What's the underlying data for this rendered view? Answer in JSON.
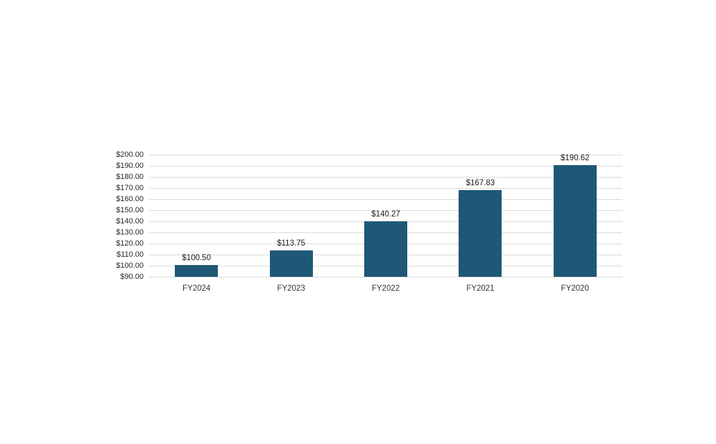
{
  "page": {
    "background_color": "#ffffff"
  },
  "chart_data": {
    "type": "bar",
    "title": "",
    "xlabel": "",
    "ylabel": "",
    "categories": [
      "FY2024",
      "FY2023",
      "FY2022",
      "FY2021",
      "FY2020"
    ],
    "values": [
      100.5,
      113.75,
      140.27,
      167.83,
      190.62
    ],
    "value_labels": [
      "$100.50",
      "$113.75",
      "$140.27",
      "$167.83",
      "$190.62"
    ],
    "ylim": [
      90,
      200
    ],
    "y_tick_step": 10,
    "y_tick_labels": [
      "$90.00",
      "$100.00",
      "$110.00",
      "$120.00",
      "$130.00",
      "$140.00",
      "$150.00",
      "$160.00",
      "$170.00",
      "$180.00",
      "$190.00",
      "$200.00"
    ],
    "grid": true,
    "legend": "none",
    "bar_color": "#1e5876",
    "gridline_color": "#d9d9d9",
    "tick_text_color": "#262626",
    "category_text_color": "#333333",
    "value_label_color": "#1a1a1a"
  }
}
